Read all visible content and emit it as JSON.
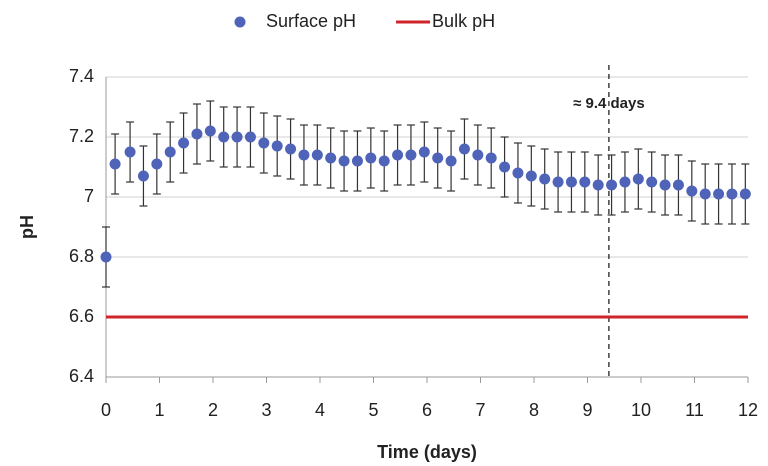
{
  "chart_data": {
    "type": "scatter",
    "x_label": "Time (days)",
    "y_label": "pH",
    "xlim": [
      0,
      12
    ],
    "xticks": [
      0,
      1,
      2,
      3,
      4,
      5,
      6,
      7,
      8,
      9,
      10,
      11,
      12
    ],
    "ylim": [
      6.4,
      7.4
    ],
    "yticks": [
      6.4,
      6.6,
      6.8,
      7,
      7.2,
      7.4
    ],
    "grid": true,
    "legend": "top",
    "series": [
      {
        "name": "Surface pH",
        "color": "#4f64b8",
        "mode": "markers",
        "x": [
          0,
          0.17,
          0.45,
          0.7,
          0.95,
          1.2,
          1.45,
          1.7,
          1.95,
          2.2,
          2.45,
          2.7,
          2.95,
          3.2,
          3.45,
          3.7,
          3.95,
          4.2,
          4.45,
          4.7,
          4.95,
          5.2,
          5.45,
          5.7,
          5.95,
          6.2,
          6.45,
          6.7,
          6.95,
          7.2,
          7.45,
          7.7,
          7.95,
          8.2,
          8.45,
          8.7,
          8.95,
          9.2,
          9.45,
          9.7,
          9.95,
          10.2,
          10.45,
          10.7,
          10.95,
          11.2,
          11.45,
          11.7,
          11.95
        ],
        "values": [
          6.8,
          7.11,
          7.15,
          7.07,
          7.11,
          7.15,
          7.18,
          7.21,
          7.22,
          7.2,
          7.2,
          7.2,
          7.18,
          7.17,
          7.16,
          7.14,
          7.14,
          7.13,
          7.12,
          7.12,
          7.13,
          7.12,
          7.14,
          7.14,
          7.15,
          7.13,
          7.12,
          7.16,
          7.14,
          7.13,
          7.1,
          7.08,
          7.07,
          7.06,
          7.05,
          7.05,
          7.05,
          7.04,
          7.04,
          7.05,
          7.06,
          7.05,
          7.04,
          7.04,
          7.02,
          7.01,
          7.01,
          7.01,
          7.01
        ],
        "errors": [
          0.1,
          0.1,
          0.1,
          0.1,
          0.1,
          0.1,
          0.1,
          0.1,
          0.1,
          0.1,
          0.1,
          0.1,
          0.1,
          0.1,
          0.1,
          0.1,
          0.1,
          0.1,
          0.1,
          0.1,
          0.1,
          0.1,
          0.1,
          0.1,
          0.1,
          0.1,
          0.1,
          0.1,
          0.1,
          0.1,
          0.1,
          0.1,
          0.1,
          0.1,
          0.1,
          0.1,
          0.1,
          0.1,
          0.1,
          0.1,
          0.1,
          0.1,
          0.1,
          0.1,
          0.1,
          0.1,
          0.1,
          0.1,
          0.1
        ]
      },
      {
        "name": "Bulk pH",
        "color": "#d0232a",
        "mode": "line",
        "x": [
          0,
          12
        ],
        "values": [
          6.6,
          6.6
        ]
      }
    ],
    "annotations": [
      {
        "x": 9.4,
        "text": "≈ 9.4 days"
      }
    ]
  }
}
